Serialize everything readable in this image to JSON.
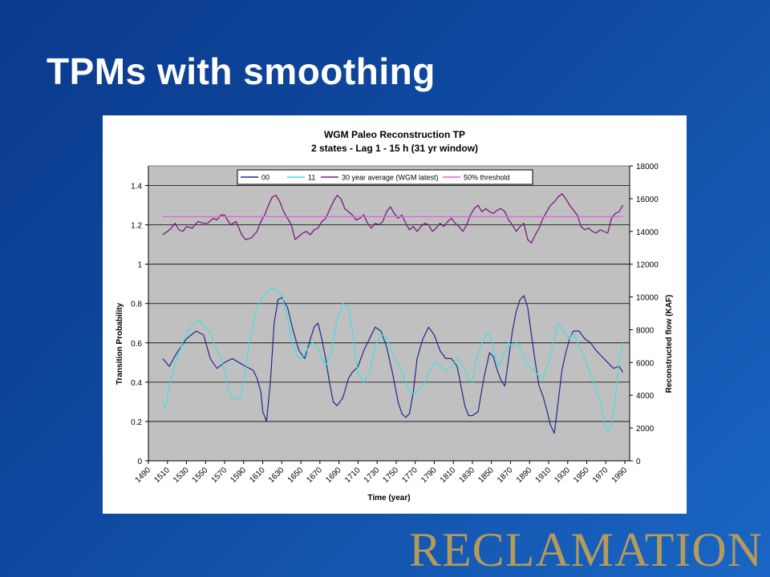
{
  "slide": {
    "title": "TPMs with smoothing",
    "logo_text": "RECLAMATION"
  },
  "chart_data": {
    "type": "line",
    "title": "WGM Paleo Reconstruction TP",
    "subtitle": "2 states - Lag 1 -  15 h (31 yr window)",
    "xlabel": "Time (year)",
    "ylabel": "Transition Probability",
    "y2label": "Reconstructed flow (KAF)",
    "xlim": [
      1490,
      1995
    ],
    "ylim": [
      0,
      1.5
    ],
    "y2lim": [
      0,
      18000
    ],
    "x_ticks": [
      1490,
      1510,
      1530,
      1550,
      1570,
      1590,
      1610,
      1630,
      1650,
      1670,
      1690,
      1710,
      1730,
      1750,
      1770,
      1790,
      1810,
      1830,
      1850,
      1870,
      1890,
      1910,
      1930,
      1950,
      1970,
      1990
    ],
    "y_ticks": [
      0,
      0.2,
      0.4,
      0.6,
      0.8,
      1,
      1.2,
      1.4
    ],
    "y2_ticks": [
      0,
      2000,
      4000,
      6000,
      8000,
      10000,
      12000,
      14000,
      16000,
      18000
    ],
    "grid": true,
    "legend_position": "top",
    "colors": {
      "plot_bg": "#c0c0c0",
      "s00": "#1f2a8c",
      "s11": "#40e0e0",
      "avg": "#7a1a80",
      "threshold": "#e060e0"
    },
    "series": [
      {
        "name": "00",
        "axis": "left",
        "x": [
          1505,
          1512,
          1520,
          1530,
          1540,
          1548,
          1555,
          1562,
          1570,
          1578,
          1585,
          1592,
          1600,
          1604,
          1608,
          1610,
          1614,
          1618,
          1622,
          1626,
          1630,
          1636,
          1642,
          1648,
          1654,
          1660,
          1664,
          1668,
          1672,
          1676,
          1680,
          1684,
          1688,
          1694,
          1700,
          1704,
          1710,
          1716,
          1722,
          1728,
          1734,
          1740,
          1746,
          1752,
          1756,
          1760,
          1764,
          1768,
          1772,
          1778,
          1784,
          1790,
          1796,
          1802,
          1808,
          1814,
          1818,
          1822,
          1826,
          1830,
          1836,
          1842,
          1848,
          1852,
          1856,
          1860,
          1864,
          1868,
          1872,
          1876,
          1880,
          1884,
          1888,
          1892,
          1896,
          1900,
          1904,
          1908,
          1912,
          1916,
          1920,
          1924,
          1928,
          1932,
          1936,
          1942,
          1948,
          1954,
          1960,
          1966,
          1972,
          1978,
          1984,
          1988
        ],
        "values": [
          0.52,
          0.48,
          0.55,
          0.62,
          0.66,
          0.64,
          0.52,
          0.47,
          0.5,
          0.52,
          0.5,
          0.48,
          0.46,
          0.42,
          0.35,
          0.25,
          0.2,
          0.4,
          0.7,
          0.82,
          0.83,
          0.78,
          0.66,
          0.56,
          0.52,
          0.62,
          0.68,
          0.7,
          0.62,
          0.52,
          0.4,
          0.3,
          0.28,
          0.32,
          0.42,
          0.45,
          0.48,
          0.56,
          0.62,
          0.68,
          0.66,
          0.58,
          0.45,
          0.3,
          0.24,
          0.22,
          0.24,
          0.35,
          0.52,
          0.62,
          0.68,
          0.64,
          0.56,
          0.52,
          0.52,
          0.48,
          0.38,
          0.28,
          0.23,
          0.23,
          0.25,
          0.42,
          0.55,
          0.53,
          0.46,
          0.41,
          0.38,
          0.52,
          0.66,
          0.76,
          0.82,
          0.84,
          0.78,
          0.64,
          0.5,
          0.38,
          0.33,
          0.26,
          0.18,
          0.14,
          0.3,
          0.46,
          0.55,
          0.62,
          0.66,
          0.66,
          0.62,
          0.6,
          0.56,
          0.53,
          0.5,
          0.47,
          0.48,
          0.45
        ]
      },
      {
        "name": "11",
        "axis": "left",
        "x": [
          1505,
          1508,
          1512,
          1516,
          1520,
          1526,
          1532,
          1538,
          1544,
          1550,
          1556,
          1560,
          1566,
          1570,
          1574,
          1578,
          1582,
          1586,
          1590,
          1596,
          1602,
          1608,
          1614,
          1620,
          1626,
          1630,
          1636,
          1640,
          1646,
          1650,
          1656,
          1662,
          1668,
          1672,
          1676,
          1682,
          1688,
          1694,
          1700,
          1704,
          1710,
          1716,
          1722,
          1728,
          1734,
          1738,
          1744,
          1748,
          1754,
          1760,
          1766,
          1772,
          1778,
          1784,
          1790,
          1796,
          1802,
          1808,
          1814,
          1820,
          1826,
          1830,
          1834,
          1840,
          1846,
          1850,
          1854,
          1858,
          1864,
          1868,
          1872,
          1876,
          1880,
          1886,
          1890,
          1894,
          1898,
          1904,
          1910,
          1916,
          1920,
          1926,
          1932,
          1936,
          1942,
          1948,
          1954,
          1960,
          1964,
          1968,
          1972,
          1976,
          1980,
          1984,
          1988
        ],
        "values": [
          0.3,
          0.27,
          0.38,
          0.46,
          0.52,
          0.6,
          0.66,
          0.7,
          0.71,
          0.68,
          0.64,
          0.58,
          0.53,
          0.46,
          0.36,
          0.32,
          0.31,
          0.32,
          0.4,
          0.6,
          0.75,
          0.82,
          0.86,
          0.88,
          0.86,
          0.85,
          0.72,
          0.62,
          0.53,
          0.52,
          0.56,
          0.6,
          0.58,
          0.52,
          0.48,
          0.55,
          0.72,
          0.8,
          0.78,
          0.66,
          0.44,
          0.4,
          0.45,
          0.58,
          0.64,
          0.64,
          0.58,
          0.52,
          0.48,
          0.4,
          0.34,
          0.35,
          0.38,
          0.45,
          0.5,
          0.48,
          0.46,
          0.48,
          0.52,
          0.48,
          0.42,
          0.4,
          0.52,
          0.6,
          0.65,
          0.62,
          0.52,
          0.48,
          0.55,
          0.6,
          0.58,
          0.6,
          0.58,
          0.5,
          0.48,
          0.46,
          0.44,
          0.42,
          0.5,
          0.62,
          0.7,
          0.66,
          0.62,
          0.65,
          0.58,
          0.52,
          0.44,
          0.36,
          0.3,
          0.2,
          0.15,
          0.18,
          0.32,
          0.52,
          0.6
        ]
      },
      {
        "name": "30 year average (WGM latest)",
        "axis": "right",
        "x": [
          1505,
          1510,
          1514,
          1518,
          1522,
          1526,
          1530,
          1536,
          1542,
          1548,
          1552,
          1558,
          1562,
          1566,
          1570,
          1576,
          1582,
          1588,
          1592,
          1598,
          1604,
          1608,
          1612,
          1616,
          1620,
          1624,
          1628,
          1632,
          1636,
          1640,
          1644,
          1648,
          1652,
          1656,
          1660,
          1664,
          1668,
          1672,
          1676,
          1680,
          1684,
          1688,
          1692,
          1696,
          1700,
          1704,
          1708,
          1712,
          1716,
          1720,
          1724,
          1728,
          1732,
          1736,
          1740,
          1744,
          1748,
          1752,
          1756,
          1760,
          1764,
          1768,
          1772,
          1776,
          1780,
          1784,
          1788,
          1792,
          1796,
          1800,
          1804,
          1808,
          1812,
          1816,
          1820,
          1824,
          1828,
          1832,
          1836,
          1840,
          1844,
          1848,
          1852,
          1856,
          1860,
          1864,
          1868,
          1872,
          1876,
          1880,
          1884,
          1888,
          1892,
          1896,
          1900,
          1904,
          1908,
          1912,
          1916,
          1920,
          1924,
          1928,
          1932,
          1936,
          1940,
          1944,
          1948,
          1952,
          1956,
          1960,
          1964,
          1968,
          1972,
          1976,
          1980,
          1984,
          1988
        ],
        "values": [
          13800,
          14000,
          14200,
          14500,
          14100,
          14000,
          14300,
          14200,
          14600,
          14500,
          14500,
          14800,
          14700,
          15000,
          15000,
          14400,
          14600,
          13800,
          13500,
          13600,
          14000,
          14600,
          15000,
          15600,
          16100,
          16200,
          15800,
          15200,
          14800,
          14400,
          13500,
          13700,
          13900,
          14000,
          13800,
          14100,
          14200,
          14600,
          14800,
          15300,
          15800,
          16200,
          16000,
          15400,
          15200,
          15000,
          14700,
          14800,
          15000,
          14500,
          14200,
          14500,
          14400,
          14600,
          15200,
          15500,
          15100,
          14800,
          15000,
          14500,
          14100,
          14300,
          14000,
          14300,
          14500,
          14400,
          14000,
          14200,
          14500,
          14300,
          14600,
          14800,
          14500,
          14300,
          14000,
          14400,
          15000,
          15400,
          15600,
          15200,
          15400,
          15200,
          15100,
          15300,
          15400,
          15200,
          14700,
          14400,
          14000,
          14300,
          14500,
          13500,
          13300,
          13800,
          14200,
          14800,
          15200,
          15600,
          15800,
          16100,
          16300,
          16000,
          15600,
          15300,
          15000,
          14300,
          14100,
          14200,
          14000,
          13900,
          14100,
          14000,
          13900,
          14800,
          15100,
          15200,
          15600
        ]
      },
      {
        "name": "50% threshold",
        "axis": "right",
        "x": [
          1505,
          1988
        ],
        "values": [
          14900,
          14900
        ]
      }
    ]
  }
}
